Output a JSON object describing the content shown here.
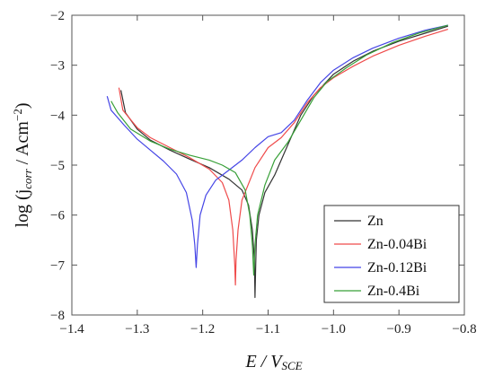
{
  "chart_data": {
    "type": "line",
    "xlabel": {
      "main": "E / V",
      "sub": "SCE"
    },
    "ylabel": {
      "pre": "log (j",
      "sub": "corr",
      "post": " / Acm",
      "sup": "−2",
      "close": ")"
    },
    "xlim": [
      -1.4,
      -0.8
    ],
    "ylim": [
      -8,
      -2
    ],
    "x_ticks": [
      -1.4,
      -1.3,
      -1.2,
      -1.1,
      -1.0,
      -0.9,
      -0.8
    ],
    "x_tick_labels": [
      "−1.4",
      "−1.3",
      "−1.2",
      "−1.1",
      "−1.0",
      "−0.9",
      "−0.8"
    ],
    "y_ticks": [
      -8,
      -7,
      -6,
      -5,
      -4,
      -3,
      -2
    ],
    "y_tick_labels": [
      "−8",
      "−7",
      "−6",
      "−5",
      "−4",
      "−3",
      "−2"
    ],
    "grid": false,
    "legend_position": "bottom-right",
    "series": [
      {
        "name": "Zn",
        "color": "#333333",
        "points": [
          [
            -1.325,
            -3.5
          ],
          [
            -1.318,
            -3.95
          ],
          [
            -1.3,
            -4.28
          ],
          [
            -1.28,
            -4.5
          ],
          [
            -1.25,
            -4.7
          ],
          [
            -1.22,
            -4.88
          ],
          [
            -1.19,
            -5.05
          ],
          [
            -1.16,
            -5.28
          ],
          [
            -1.14,
            -5.5
          ],
          [
            -1.13,
            -5.8
          ],
          [
            -1.124,
            -6.3
          ],
          [
            -1.121,
            -6.9
          ],
          [
            -1.12,
            -7.65
          ],
          [
            -1.119,
            -7.0
          ],
          [
            -1.118,
            -6.5
          ],
          [
            -1.114,
            -6.0
          ],
          [
            -1.105,
            -5.55
          ],
          [
            -1.09,
            -5.2
          ],
          [
            -1.07,
            -4.6
          ],
          [
            -1.05,
            -4.0
          ],
          [
            -1.03,
            -3.6
          ],
          [
            -1.0,
            -3.18
          ],
          [
            -0.97,
            -2.92
          ],
          [
            -0.94,
            -2.72
          ],
          [
            -0.9,
            -2.52
          ],
          [
            -0.86,
            -2.36
          ],
          [
            -0.825,
            -2.22
          ]
        ]
      },
      {
        "name": "Zn-0.04Bi",
        "color": "#ef4b4b",
        "points": [
          [
            -1.328,
            -3.45
          ],
          [
            -1.322,
            -3.9
          ],
          [
            -1.3,
            -4.25
          ],
          [
            -1.28,
            -4.45
          ],
          [
            -1.25,
            -4.65
          ],
          [
            -1.22,
            -4.85
          ],
          [
            -1.19,
            -5.08
          ],
          [
            -1.17,
            -5.35
          ],
          [
            -1.16,
            -5.7
          ],
          [
            -1.154,
            -6.3
          ],
          [
            -1.151,
            -7.0
          ],
          [
            -1.15,
            -7.4
          ],
          [
            -1.149,
            -6.9
          ],
          [
            -1.146,
            -6.3
          ],
          [
            -1.14,
            -5.7
          ],
          [
            -1.12,
            -5.05
          ],
          [
            -1.1,
            -4.65
          ],
          [
            -1.08,
            -4.45
          ],
          [
            -1.06,
            -4.15
          ],
          [
            -1.04,
            -3.75
          ],
          [
            -1.02,
            -3.45
          ],
          [
            -1.0,
            -3.25
          ],
          [
            -0.97,
            -3.02
          ],
          [
            -0.94,
            -2.82
          ],
          [
            -0.9,
            -2.6
          ],
          [
            -0.86,
            -2.42
          ],
          [
            -0.825,
            -2.28
          ]
        ]
      },
      {
        "name": "Zn-0.12Bi",
        "color": "#4545e6",
        "points": [
          [
            -1.346,
            -3.62
          ],
          [
            -1.34,
            -3.9
          ],
          [
            -1.32,
            -4.2
          ],
          [
            -1.3,
            -4.48
          ],
          [
            -1.28,
            -4.7
          ],
          [
            -1.26,
            -4.92
          ],
          [
            -1.24,
            -5.18
          ],
          [
            -1.225,
            -5.55
          ],
          [
            -1.216,
            -6.1
          ],
          [
            -1.212,
            -6.6
          ],
          [
            -1.21,
            -7.05
          ],
          [
            -1.208,
            -6.6
          ],
          [
            -1.204,
            -6.0
          ],
          [
            -1.195,
            -5.6
          ],
          [
            -1.18,
            -5.3
          ],
          [
            -1.16,
            -5.1
          ],
          [
            -1.14,
            -4.9
          ],
          [
            -1.12,
            -4.65
          ],
          [
            -1.1,
            -4.43
          ],
          [
            -1.08,
            -4.35
          ],
          [
            -1.06,
            -4.1
          ],
          [
            -1.04,
            -3.7
          ],
          [
            -1.02,
            -3.35
          ],
          [
            -1.0,
            -3.1
          ],
          [
            -0.97,
            -2.85
          ],
          [
            -0.94,
            -2.66
          ],
          [
            -0.9,
            -2.46
          ],
          [
            -0.86,
            -2.3
          ],
          [
            -0.825,
            -2.2
          ]
        ]
      },
      {
        "name": "Zn-0.4Bi",
        "color": "#38a038",
        "points": [
          [
            -1.34,
            -3.72
          ],
          [
            -1.33,
            -3.95
          ],
          [
            -1.31,
            -4.28
          ],
          [
            -1.28,
            -4.52
          ],
          [
            -1.25,
            -4.68
          ],
          [
            -1.22,
            -4.8
          ],
          [
            -1.19,
            -4.9
          ],
          [
            -1.17,
            -5.0
          ],
          [
            -1.15,
            -5.15
          ],
          [
            -1.135,
            -5.5
          ],
          [
            -1.128,
            -6.0
          ],
          [
            -1.124,
            -6.6
          ],
          [
            -1.122,
            -7.2
          ],
          [
            -1.12,
            -6.6
          ],
          [
            -1.116,
            -6.0
          ],
          [
            -1.105,
            -5.4
          ],
          [
            -1.09,
            -4.9
          ],
          [
            -1.07,
            -4.55
          ],
          [
            -1.05,
            -4.1
          ],
          [
            -1.03,
            -3.65
          ],
          [
            -1.01,
            -3.33
          ],
          [
            -0.98,
            -3.05
          ],
          [
            -0.95,
            -2.8
          ],
          [
            -0.91,
            -2.55
          ],
          [
            -0.87,
            -2.36
          ],
          [
            -0.825,
            -2.2
          ]
        ]
      }
    ]
  }
}
